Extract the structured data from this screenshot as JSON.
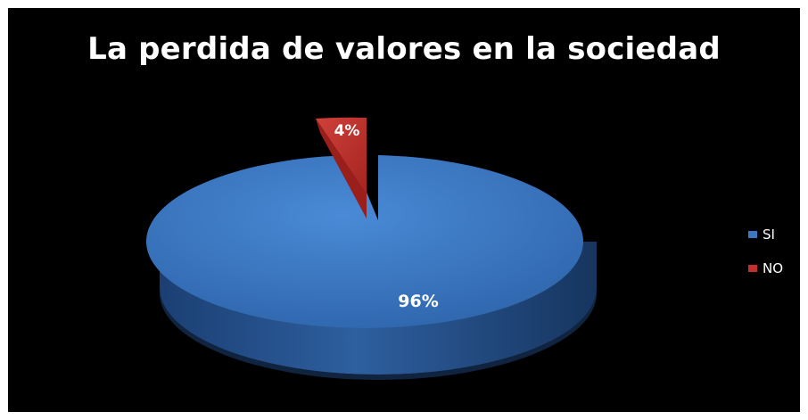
{
  "chart_data": {
    "type": "pie",
    "title": "La perdida de valores en la sociedad",
    "categories": [
      "SI",
      "NO"
    ],
    "values": [
      96,
      4
    ],
    "data_labels": [
      "96%",
      "4%"
    ],
    "colors": {
      "SI": "#3b78c4",
      "NO": "#c0302c"
    },
    "legend_position": "right",
    "three_d": true
  }
}
